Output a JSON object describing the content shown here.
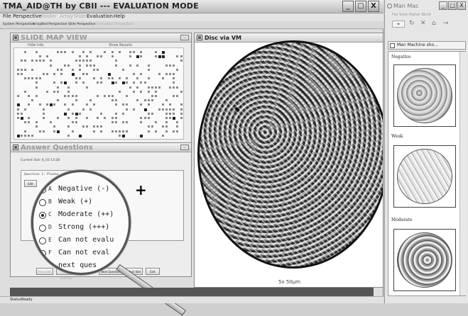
{
  "app": {
    "title": "TMA_AID@TH by CBII --- EVALUATION MODE",
    "window_buttons": [
      "_",
      "□",
      "X"
    ]
  },
  "menu": {
    "items": [
      {
        "label": "File",
        "enabled": true
      },
      {
        "label": "Perspective",
        "enabled": true
      },
      {
        "label": "Folder",
        "enabled": false
      },
      {
        "label": "Array",
        "enabled": false
      },
      {
        "label": "Slide",
        "enabled": false
      },
      {
        "label": "Evaluation",
        "enabled": true
      },
      {
        "label": "Help",
        "enabled": true
      }
    ]
  },
  "perspectives": [
    "System Perspective",
    "ArrayBed Perspective",
    "Slide Perspective",
    "Evaluation Perspective"
  ],
  "slide_map": {
    "title": "SLIDE MAP VIEW",
    "hide_info": "Hide Info",
    "show_results": "Show Results"
  },
  "answer": {
    "title": "Answer Questions",
    "current_slot": "Current Slot: 6_03   13:28",
    "question_prefix": "Question 1:",
    "question_text": "Please ...staining intensity.",
    "edit_label": "Edit",
    "options": [
      {
        "letter": "A",
        "text": "Negative (-)",
        "selected": false
      },
      {
        "letter": "B",
        "text": "Weak (+)",
        "selected": false
      },
      {
        "letter": "C",
        "text": "Moderate (++)",
        "selected": true
      },
      {
        "letter": "D",
        "text": "Strong (+++)",
        "selected": false
      },
      {
        "letter": "E",
        "text": "Can not evalu",
        "selected": false
      },
      {
        "letter": "F",
        "text": "Can not eval",
        "selected": false
      }
    ],
    "next_question_fragment": "next ques",
    "buttons": {
      "prev_slot": "Prev Slot",
      "prev_question": "Prev Question",
      "next_question": "Next Question",
      "next_slot": "Next Slot",
      "exit": "Exit"
    }
  },
  "viewer": {
    "title": "Disc via VM",
    "scale": "5x 50μm"
  },
  "status": {
    "left": "Status",
    "right": "Ready"
  },
  "side": {
    "title": "Man Mac",
    "menu_text": "File  View  Higher  Bkmt",
    "tab_label": "Man Machine sho...",
    "references": [
      "Negative",
      "Weak",
      "Moderate"
    ]
  }
}
